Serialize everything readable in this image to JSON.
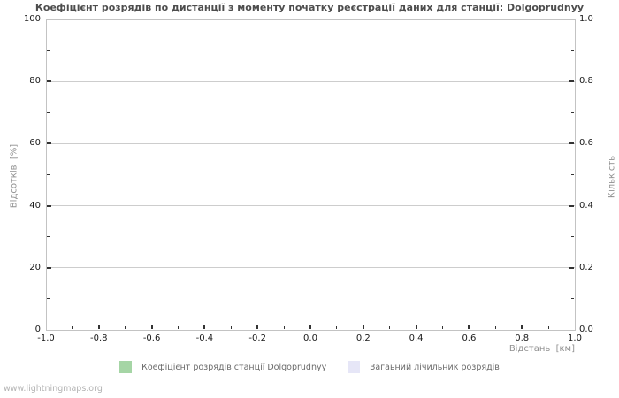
{
  "watermark": "www.lightningmaps.org",
  "chart_data": {
    "type": "line",
    "title": "Коефіцієнт розрядів по дистанції з моменту початку реєстрації даних для станції: Dolgoprudnyy",
    "xlabel": "Відстань  [км]",
    "ylabel_left": "Відсотків  [%]",
    "ylabel_right": "Кількість",
    "xlim": [
      -1.0,
      1.0
    ],
    "ylim_left": [
      0,
      100
    ],
    "ylim_right": [
      0.0,
      1.0
    ],
    "x_tick_labels": [
      "-1.0",
      "-0.8",
      "-0.6",
      "-0.4",
      "-0.2",
      "0.0",
      "0.2",
      "0.4",
      "0.6",
      "0.8",
      "1.0"
    ],
    "y_tick_labels_left": [
      "0",
      "20",
      "40",
      "60",
      "80",
      "100"
    ],
    "y_tick_labels_right": [
      "0.0",
      "0.2",
      "0.4",
      "0.6",
      "0.8",
      "1.0"
    ],
    "grid": true,
    "legend_position": "bottom",
    "legend": [
      {
        "label": "Коефіцієнт розрядів станції Dolgoprudnyy",
        "color": "#a5d5a5"
      },
      {
        "label": "Загаьний лічильник розрядів",
        "color": "#e6e6f7"
      }
    ],
    "series": [
      {
        "name": "Коефіцієнт розрядів станції Dolgoprudnyy",
        "color": "#a5d5a5",
        "x": [],
        "values": []
      },
      {
        "name": "Загаьний лічильник розрядів",
        "color": "#e6e6f7",
        "x": [],
        "values": []
      }
    ],
    "colors": {
      "grid": "#cdcdcd",
      "border": "#c3c3c3",
      "tick": "#333333",
      "title": "#4d4d4d",
      "tick_label": "#1a1a1a",
      "axis_label": "#909090"
    }
  }
}
